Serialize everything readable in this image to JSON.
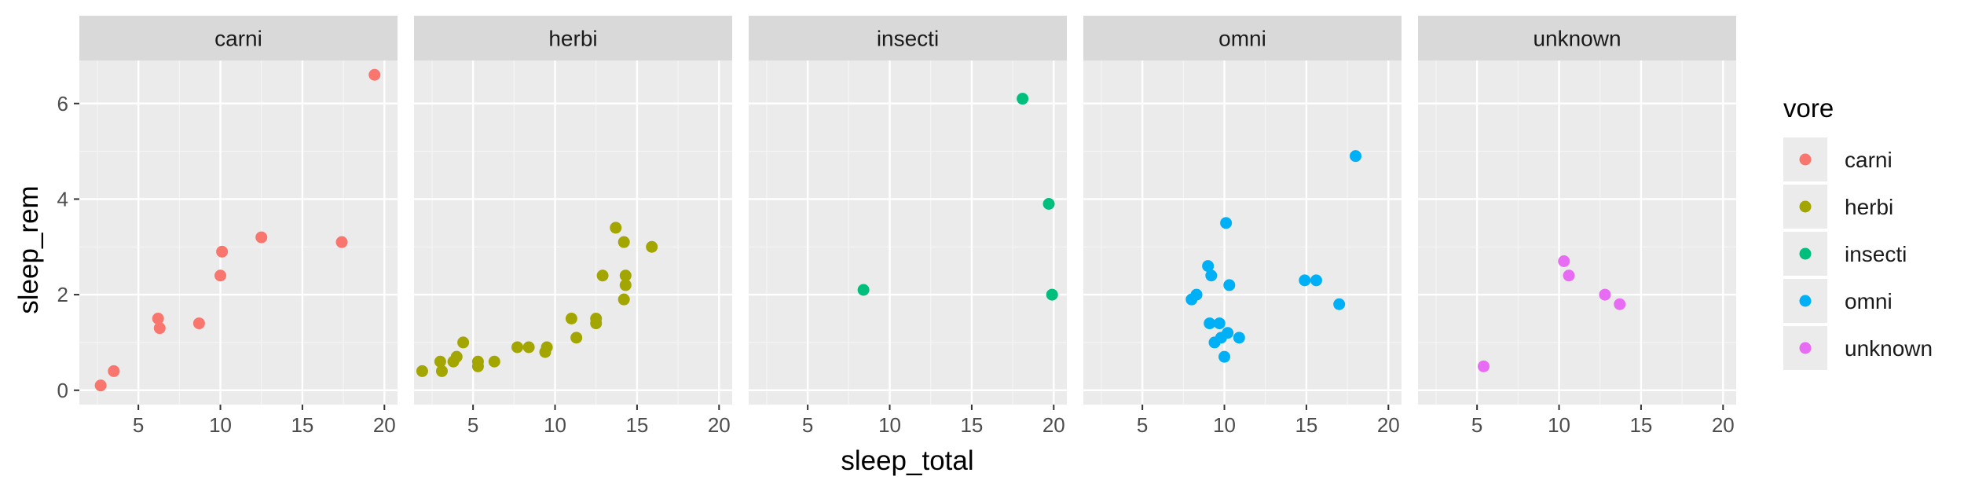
{
  "chart_data": {
    "type": "scatter",
    "xlabel": "sleep_total",
    "ylabel": "sleep_rem",
    "xlim": [
      1.4,
      20.8
    ],
    "ylim": [
      -0.3,
      6.9
    ],
    "x_ticks": [
      5,
      10,
      15,
      20
    ],
    "y_ticks": [
      0,
      2,
      4,
      6
    ],
    "grid": true,
    "legend_position": "right",
    "legend_title": "vore",
    "colors": {
      "carni": "#F8766D",
      "herbi": "#A3A500",
      "insecti": "#00BF7D",
      "omni": "#00B0F6",
      "unknown": "#E76BF3"
    },
    "panels": [
      {
        "name": "carni",
        "points": [
          [
            2.7,
            0.1
          ],
          [
            3.5,
            0.4
          ],
          [
            6.2,
            1.5
          ],
          [
            6.3,
            1.3
          ],
          [
            8.7,
            1.4
          ],
          [
            10.0,
            2.4
          ],
          [
            10.1,
            2.9
          ],
          [
            12.5,
            3.2
          ],
          [
            17.4,
            3.1
          ],
          [
            19.4,
            6.6
          ]
        ]
      },
      {
        "name": "herbi",
        "points": [
          [
            1.9,
            0.4
          ],
          [
            3.0,
            0.6
          ],
          [
            3.1,
            0.4
          ],
          [
            3.8,
            0.6
          ],
          [
            4.0,
            0.7
          ],
          [
            4.4,
            1.0
          ],
          [
            5.3,
            0.6
          ],
          [
            5.3,
            0.5
          ],
          [
            6.3,
            0.6
          ],
          [
            7.7,
            0.9
          ],
          [
            8.4,
            0.9
          ],
          [
            9.4,
            0.8
          ],
          [
            9.5,
            0.9
          ],
          [
            11.0,
            1.5
          ],
          [
            11.3,
            1.1
          ],
          [
            12.5,
            1.4
          ],
          [
            12.5,
            1.5
          ],
          [
            12.9,
            2.4
          ],
          [
            13.7,
            3.4
          ],
          [
            14.2,
            1.9
          ],
          [
            14.2,
            3.1
          ],
          [
            14.3,
            2.4
          ],
          [
            14.3,
            2.2
          ],
          [
            15.9,
            3.0
          ]
        ]
      },
      {
        "name": "insecti",
        "points": [
          [
            8.4,
            2.1
          ],
          [
            18.1,
            6.1
          ],
          [
            19.7,
            3.9
          ],
          [
            19.9,
            2.0
          ]
        ]
      },
      {
        "name": "omni",
        "points": [
          [
            8.0,
            1.9
          ],
          [
            8.3,
            2.0
          ],
          [
            9.0,
            2.6
          ],
          [
            9.1,
            1.4
          ],
          [
            9.2,
            2.4
          ],
          [
            9.4,
            1.0
          ],
          [
            9.7,
            1.4
          ],
          [
            9.8,
            1.1
          ],
          [
            10.0,
            0.7
          ],
          [
            10.1,
            3.5
          ],
          [
            10.2,
            1.2
          ],
          [
            10.3,
            2.2
          ],
          [
            10.9,
            1.1
          ],
          [
            14.9,
            2.3
          ],
          [
            15.6,
            2.3
          ],
          [
            17.0,
            1.8
          ],
          [
            18.0,
            4.9
          ]
        ]
      },
      {
        "name": "unknown",
        "points": [
          [
            5.4,
            0.5
          ],
          [
            10.3,
            2.7
          ],
          [
            10.6,
            2.4
          ],
          [
            12.8,
            2.0
          ],
          [
            13.7,
            1.8
          ]
        ]
      }
    ]
  }
}
